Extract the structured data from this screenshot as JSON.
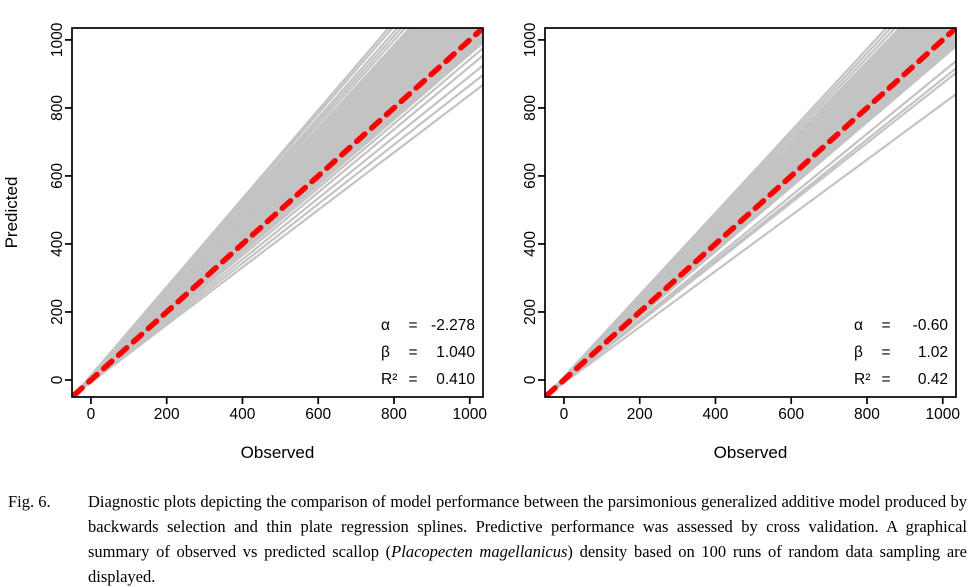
{
  "figure": {
    "caption_label": "Fig. 6.",
    "caption": {
      "before_italic": "Diagnostic plots depicting the comparison of model performance between the parsimonious generalized additive model produced by backwards selection and thin plate regression splines. Predictive performance was assessed by cross validation. A graphical summary of observed vs predicted scallop (",
      "italic": "Placopecten magellanicus",
      "after_italic": ") density based on 100 runs of random data sampling are displayed."
    }
  },
  "colors": {
    "line_gray": "#c3c3c3",
    "identity_red": "#ff0000",
    "axis": "#000000",
    "background": "#ffffff"
  },
  "chart_data": [
    {
      "type": "line",
      "panel": "left",
      "title": "",
      "xlabel": "Observed",
      "ylabel": "Predicted",
      "xlim": [
        -50,
        1035
      ],
      "ylim": [
        -50,
        1035
      ],
      "xticks": [
        0,
        200,
        400,
        600,
        800,
        1000
      ],
      "yticks": [
        0,
        200,
        400,
        600,
        800,
        1000
      ],
      "grid": false,
      "legend": "none",
      "identity_line": {
        "style": "dashed",
        "color": "#ff0000",
        "slope": 1,
        "intercept": 0,
        "from": [
          -45,
          -45
        ],
        "to": [
          1035,
          1035
        ]
      },
      "annotations": [
        {
          "name": "alpha",
          "symbol": "α",
          "eq": "=",
          "value": "-2.278"
        },
        {
          "name": "beta",
          "symbol": "β",
          "eq": "=",
          "value": "1.040"
        },
        {
          "name": "r-squared",
          "symbol": "R²",
          "eq": "=",
          "value": "0.410"
        }
      ],
      "gray_lines": {
        "description": "observed-vs-predicted regression fits from 100 runs of random data sampling (representative slopes through pivot)",
        "runs_displayed": 100,
        "pivot": [
          -45,
          -45
        ],
        "slopes": [
          0.845,
          0.872,
          0.898,
          0.925,
          0.945,
          0.96,
          0.966,
          0.972,
          0.978,
          0.984,
          0.99,
          0.996,
          1.002,
          1.008,
          1.014,
          1.02,
          1.026,
          1.032,
          1.038,
          1.044,
          1.05,
          1.056,
          1.062,
          1.068,
          1.074,
          1.08,
          1.086,
          1.092,
          1.098,
          1.104,
          1.11,
          1.116,
          1.122,
          1.128,
          1.134,
          1.14,
          1.146,
          1.152,
          1.158,
          1.164,
          1.17,
          1.176,
          1.182,
          1.188,
          1.194,
          1.2,
          1.206,
          1.212,
          1.218,
          1.235,
          1.25,
          1.265,
          1.285,
          1.3
        ]
      }
    },
    {
      "type": "line",
      "panel": "right",
      "title": "",
      "xlabel": "Observed",
      "ylabel": "",
      "xlim": [
        -50,
        1035
      ],
      "ylim": [
        -50,
        1035
      ],
      "xticks": [
        0,
        200,
        400,
        600,
        800,
        1000
      ],
      "yticks": [
        0,
        200,
        400,
        600,
        800,
        1000
      ],
      "grid": false,
      "legend": "none",
      "identity_line": {
        "style": "dashed",
        "color": "#ff0000",
        "slope": 1,
        "intercept": 0,
        "from": [
          -45,
          -45
        ],
        "to": [
          1035,
          1035
        ]
      },
      "annotations": [
        {
          "name": "alpha",
          "symbol": "α",
          "eq": "=",
          "value": "-0.60"
        },
        {
          "name": "beta",
          "symbol": "β",
          "eq": "=",
          "value": "1.02"
        },
        {
          "name": "r-squared",
          "symbol": "R²",
          "eq": "=",
          "value": "0.42"
        }
      ],
      "gray_lines": {
        "description": "observed-vs-predicted regression fits from 100 runs of random data sampling (representative slopes through pivot)",
        "runs_displayed": 100,
        "pivot": [
          -45,
          -45
        ],
        "slopes": [
          0.82,
          0.878,
          0.89,
          0.91,
          0.95,
          0.955,
          0.96,
          0.965,
          0.97,
          0.975,
          0.98,
          0.985,
          0.99,
          0.995,
          1.0,
          1.005,
          1.01,
          1.015,
          1.02,
          1.025,
          1.03,
          1.035,
          1.04,
          1.045,
          1.05,
          1.055,
          1.06,
          1.065,
          1.07,
          1.075,
          1.08,
          1.085,
          1.09,
          1.095,
          1.1,
          1.105,
          1.11,
          1.115,
          1.12,
          1.125,
          1.13,
          1.135,
          1.14,
          1.145,
          1.15,
          1.155,
          1.16,
          1.175,
          1.19,
          1.205
        ]
      }
    }
  ]
}
